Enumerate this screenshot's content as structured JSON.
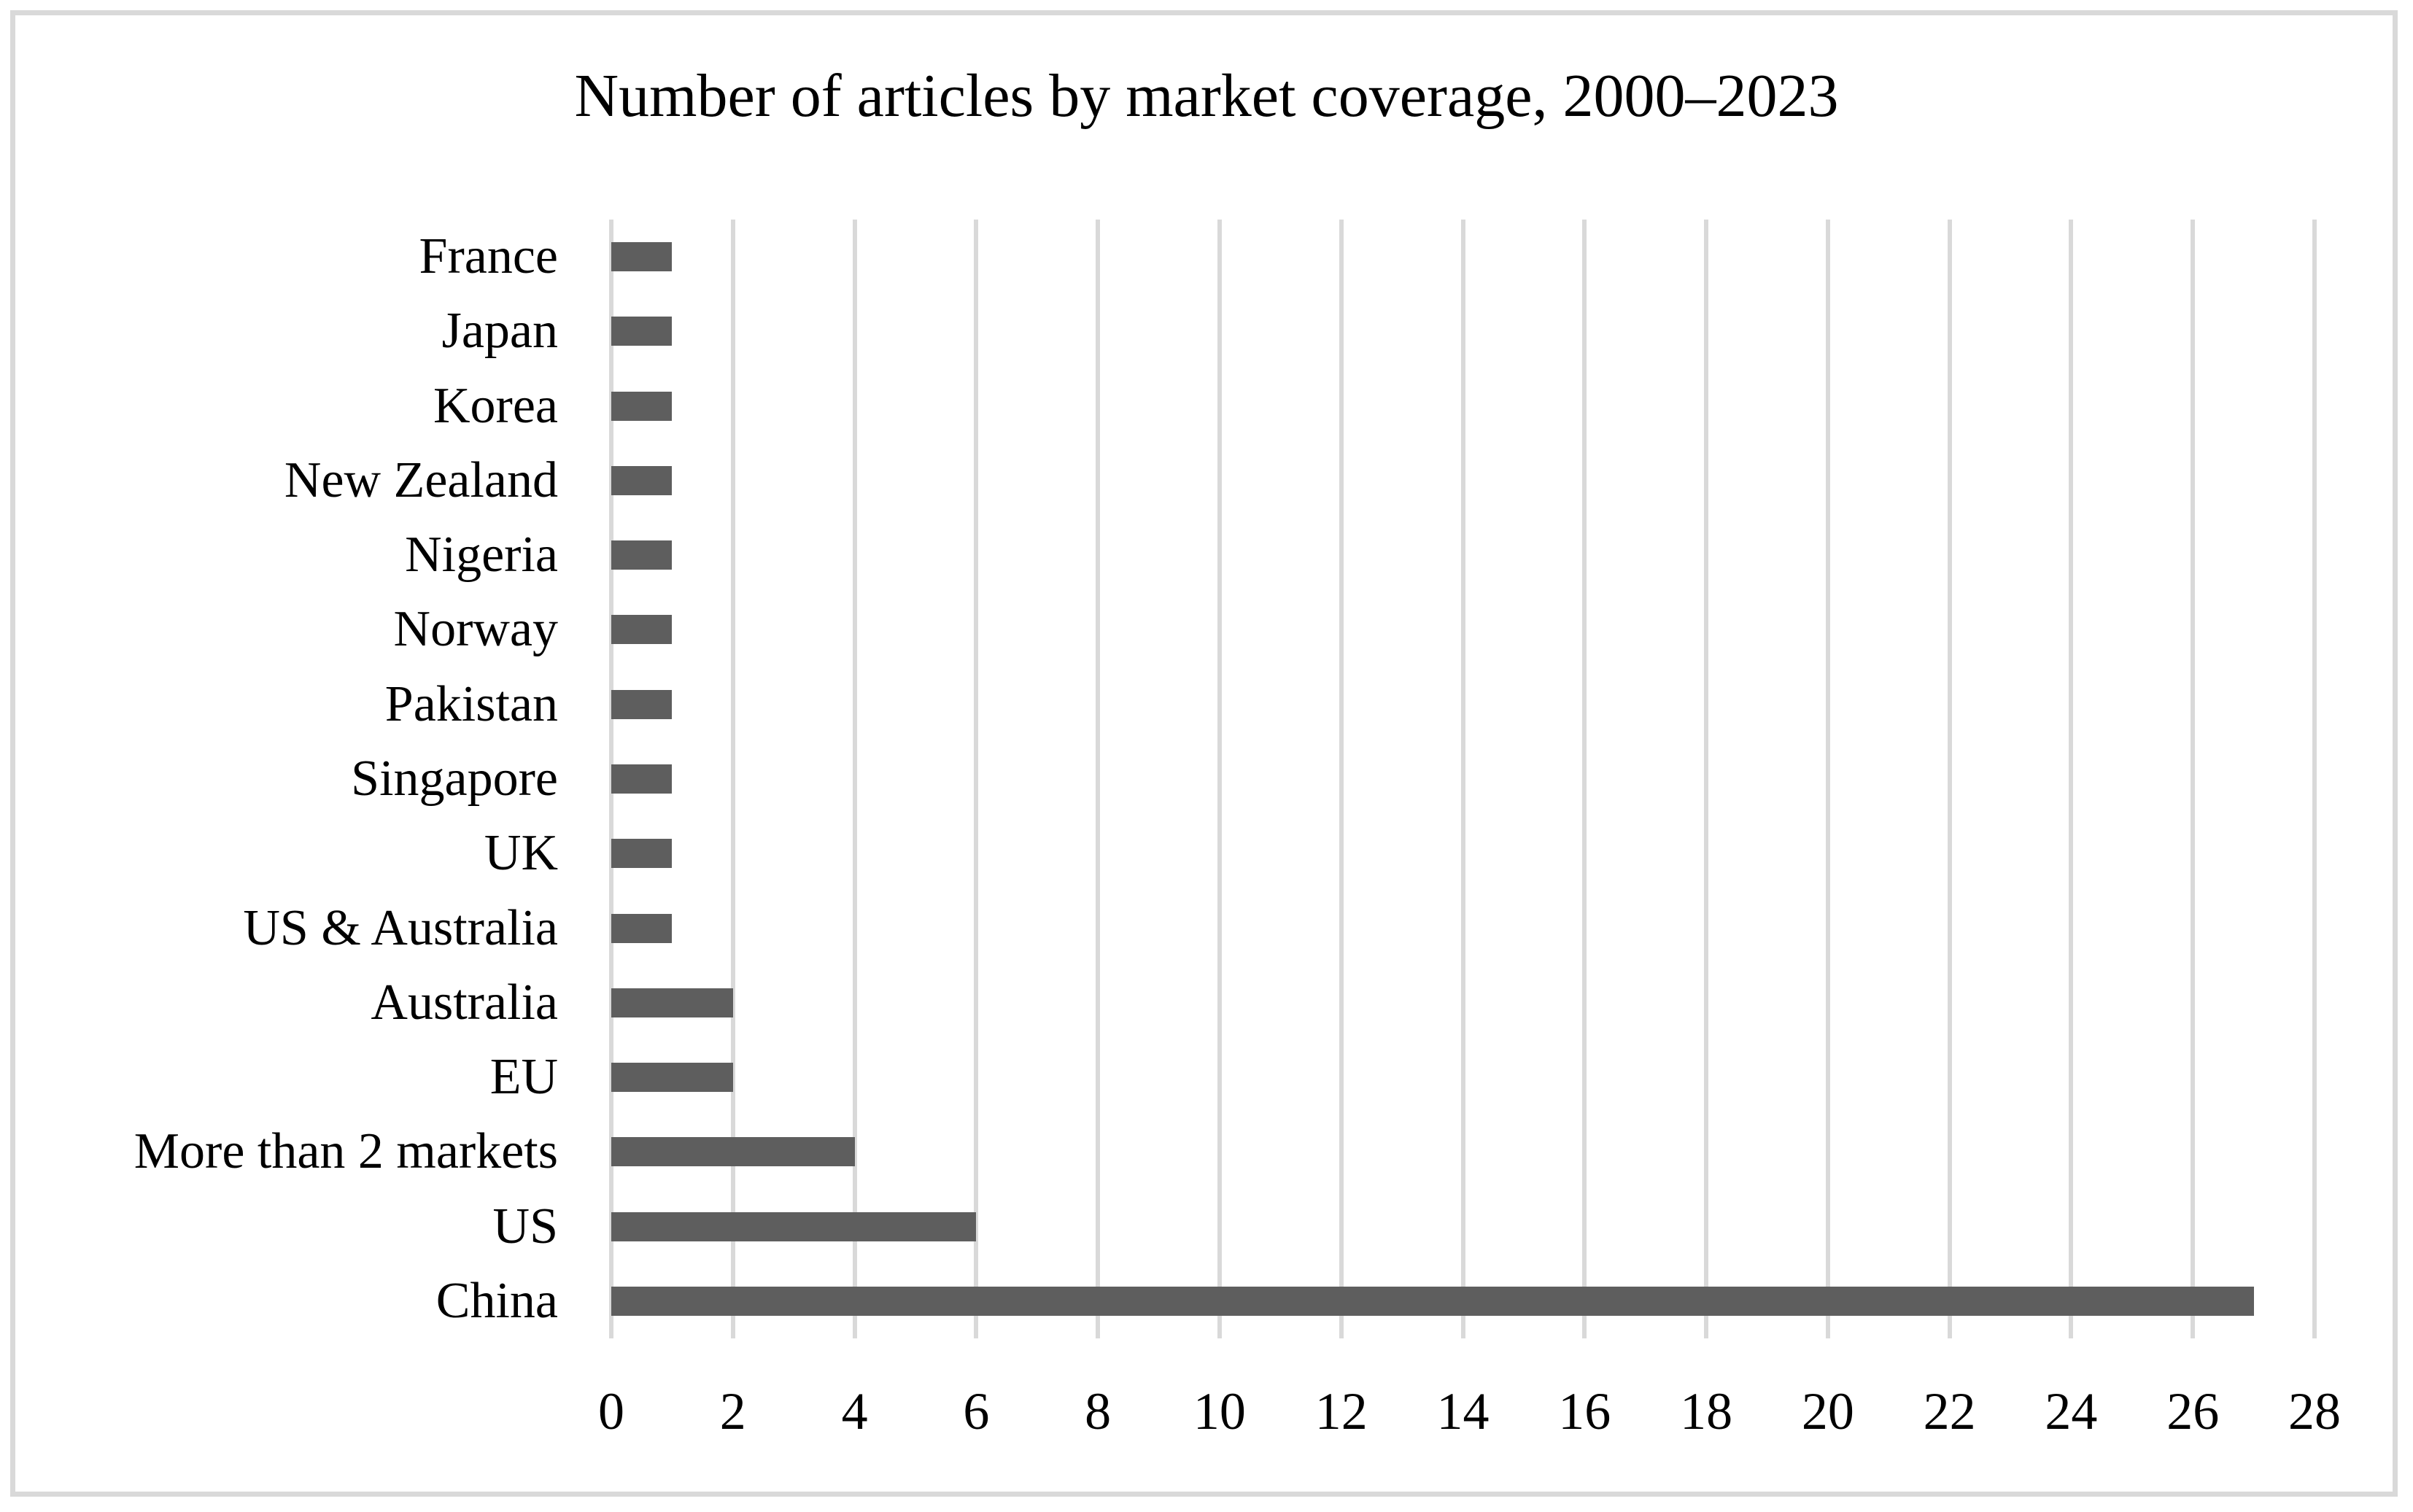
{
  "title": "Number of articles by market coverage, 2000–2023",
  "chart_data": {
    "type": "bar",
    "orientation": "horizontal",
    "title": "Number of articles by market coverage, 2000–2023",
    "xlabel": "",
    "ylabel": "",
    "categories": [
      "France",
      "Japan",
      "Korea",
      "New Zealand",
      "Nigeria",
      "Norway",
      "Pakistan",
      "Singapore",
      "UK",
      "US & Australia",
      "Australia",
      "EU",
      "More than 2 markets",
      "US",
      "China"
    ],
    "values": [
      1,
      1,
      1,
      1,
      1,
      1,
      1,
      1,
      1,
      1,
      2,
      2,
      4,
      6,
      27
    ],
    "xlim": [
      0,
      28
    ],
    "xticks": [
      0,
      2,
      4,
      6,
      8,
      10,
      12,
      14,
      16,
      18,
      20,
      22,
      24,
      26,
      28
    ],
    "grid": "vertical-gridlines-on",
    "legend": "none",
    "bar_color": "#5e5e5e",
    "gridline_color": "#d9d9d9",
    "frame_color": "#d9d9d9",
    "text_color": "#000000",
    "background_color": "#ffffff"
  }
}
